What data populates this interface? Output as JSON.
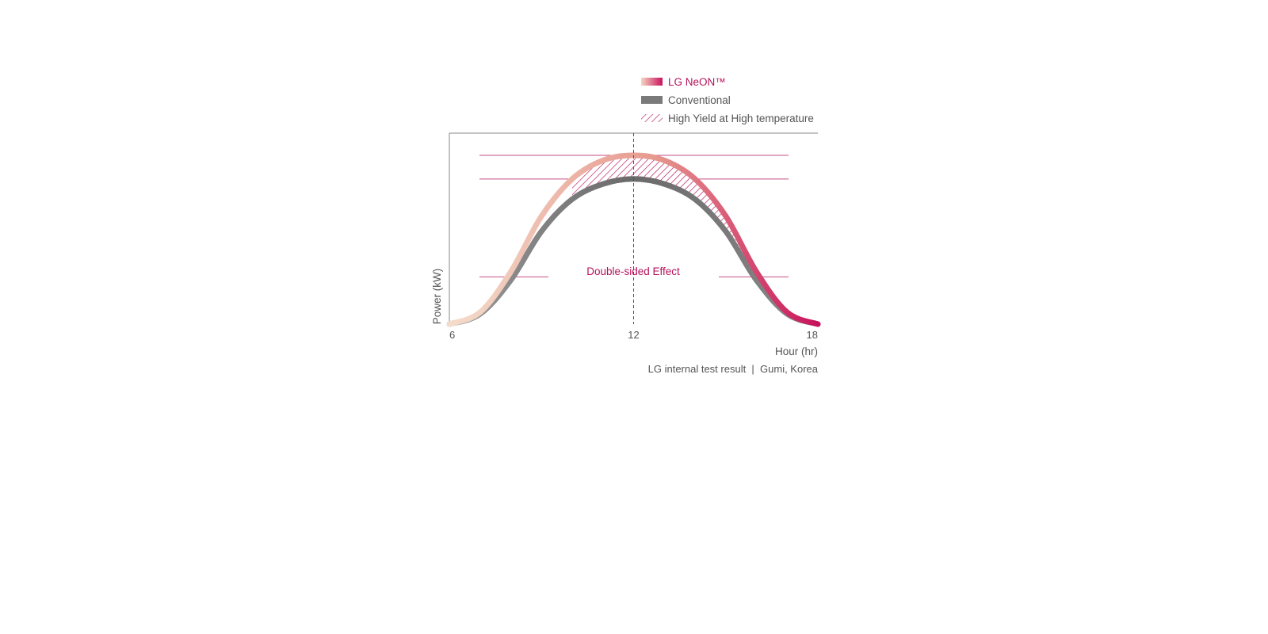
{
  "chart_data": {
    "type": "line",
    "title": "",
    "xlabel": "Hour (hr)",
    "ylabel": "Power (kW)",
    "x_ticks": [
      "6",
      "12",
      "18"
    ],
    "xlim": [
      6,
      18
    ],
    "grid": false,
    "legend_position": "top-right",
    "legend": [
      {
        "label": "LG NeON™",
        "swatch": "gradient",
        "color": "#c8135c"
      },
      {
        "label": "Conventional",
        "swatch": "solid",
        "color": "#6e6e6e"
      },
      {
        "label": "High Yield at High temperature",
        "swatch": "hatch",
        "color": "#b5125b"
      }
    ],
    "series": [
      {
        "name": "LG NeON™",
        "color_start": "#f4dccb",
        "color_end": "#c8135c",
        "x": [
          6,
          7,
          8,
          9,
          10,
          11,
          12,
          13,
          14,
          15,
          16,
          17,
          18
        ],
        "values": [
          0.0,
          0.07,
          0.31,
          0.64,
          0.86,
          0.97,
          1.0,
          0.97,
          0.86,
          0.64,
          0.31,
          0.07,
          0.0
        ]
      },
      {
        "name": "Conventional",
        "color": "#7a7a7a",
        "x": [
          6,
          7,
          8,
          9,
          10,
          11,
          12,
          13,
          14,
          15,
          16,
          17,
          18
        ],
        "values": [
          0.0,
          0.06,
          0.26,
          0.55,
          0.74,
          0.83,
          0.86,
          0.83,
          0.74,
          0.55,
          0.26,
          0.06,
          0.0
        ]
      }
    ],
    "annotations": {
      "center_text": "Double-sided Effect",
      "footnote": "LG internal test result  |  Gumi, Korea",
      "reference_lines": [
        1.0,
        0.86,
        0.28
      ],
      "vertical_marker_x": 12
    },
    "colors": {
      "brand": "#b5125b",
      "axis": "#888888",
      "text": "#555555"
    }
  }
}
